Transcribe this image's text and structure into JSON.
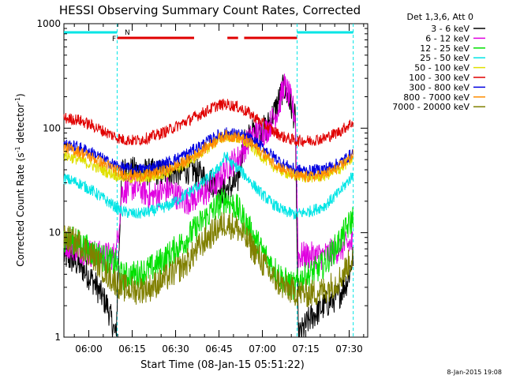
{
  "chart_data": {
    "type": "line",
    "title": "HESSI Observing Summary Count Rates, Corrected",
    "xlabel": "Start Time (08-Jan-15 05:51:22)",
    "ylabel_main": "Corrected Count Rate (s",
    "ylabel_sup1": "-1",
    "ylabel_mid": " detector",
    "ylabel_sup2": "-1",
    "ylabel_end": ")",
    "yscale": "log",
    "ylim": [
      1,
      1000
    ],
    "xlim_minutes": [
      0,
      105
    ],
    "x_ticks": [
      "06:00",
      "06:15",
      "06:30",
      "06:45",
      "07:00",
      "07:15",
      "07:30"
    ],
    "x_tick_minutes": [
      8.6,
      23.6,
      38.6,
      53.6,
      68.6,
      83.6,
      98.6
    ],
    "y_ticks": [
      "1",
      "10",
      "100",
      "1000"
    ],
    "y_tick_values": [
      1,
      10,
      100,
      1000
    ],
    "legend_title": "Det 1,3,6, Att 0",
    "legend_position": "right",
    "footer_date": "8-Jan-2015 19:08",
    "flags": {
      "night_label": "N",
      "flare_label": "F",
      "night_color": "#00e5e5",
      "flare_color": "#e00000",
      "night_intervals_minutes": [
        [
          0,
          18.4
        ],
        [
          80.6,
          100
        ]
      ],
      "flare_intervals_minutes": [
        [
          18.4,
          45
        ],
        [
          56.5,
          60.2
        ],
        [
          62.3,
          80.6
        ]
      ],
      "boundaries_minutes": [
        18.4,
        80.6,
        100
      ]
    },
    "series": [
      {
        "name": "3 - 6 keV",
        "color": "#000000",
        "x": [
          0,
          5,
          10,
          15,
          18,
          20,
          28,
          36,
          44,
          50,
          55,
          60,
          62,
          65,
          70,
          73,
          76,
          78,
          80,
          81,
          85,
          90,
          95,
          98,
          100
        ],
        "y": [
          6,
          5,
          3.5,
          2,
          1,
          40,
          38,
          37,
          40,
          32,
          25,
          30,
          70,
          90,
          100,
          150,
          250,
          180,
          120,
          1,
          1.5,
          2,
          2.5,
          3.5,
          6
        ]
      },
      {
        "name": "6 - 12 keV",
        "color": "#e000e0",
        "x": [
          0,
          5,
          10,
          15,
          18,
          20,
          25,
          30,
          36,
          42,
          48,
          53,
          57,
          60,
          63,
          66,
          70,
          74,
          76,
          78,
          80,
          81,
          85,
          90,
          95,
          100
        ],
        "y": [
          8,
          7,
          6.3,
          6,
          6,
          25,
          28,
          22,
          26,
          20,
          23,
          30,
          45,
          50,
          70,
          90,
          95,
          150,
          260,
          200,
          130,
          6,
          6,
          6,
          7,
          8
        ]
      },
      {
        "name": "12 - 25 keV",
        "color": "#00e000",
        "x": [
          0,
          5,
          10,
          15,
          18,
          20,
          25,
          30,
          36,
          42,
          48,
          53,
          56,
          60,
          64,
          68,
          72,
          76,
          80,
          81,
          85,
          90,
          95,
          100
        ],
        "y": [
          9,
          8,
          6.5,
          5.5,
          5,
          3.8,
          4,
          4.5,
          6,
          8.5,
          13,
          18,
          21,
          17,
          11,
          7,
          4.8,
          3.5,
          3,
          3.5,
          4,
          5,
          8,
          14
        ]
      },
      {
        "name": "25 - 50 keV",
        "color": "#00e5e5",
        "x": [
          0,
          5,
          10,
          15,
          20,
          25,
          30,
          36,
          42,
          48,
          53,
          56,
          58,
          60,
          64,
          68,
          72,
          76,
          80,
          85,
          90,
          95,
          100
        ],
        "y": [
          33,
          30,
          25,
          20,
          16,
          15,
          16,
          18,
          23,
          30,
          40,
          55,
          45,
          42,
          32,
          24,
          19,
          16,
          15,
          16,
          18,
          24,
          36
        ]
      },
      {
        "name": "50 - 100 keV",
        "color": "#e0e000",
        "x": [
          0,
          5,
          10,
          15,
          20,
          25,
          30,
          36,
          42,
          48,
          53,
          56,
          60,
          64,
          68,
          72,
          76,
          80,
          85,
          90,
          95,
          100
        ],
        "y": [
          55,
          50,
          44,
          38,
          34,
          33,
          34,
          38,
          45,
          60,
          75,
          85,
          80,
          70,
          55,
          44,
          38,
          35,
          34,
          35,
          40,
          52
        ]
      },
      {
        "name": "100 - 300 keV",
        "color": "#e00000",
        "x": [
          0,
          5,
          10,
          15,
          20,
          25,
          30,
          36,
          42,
          48,
          53,
          56,
          60,
          64,
          68,
          72,
          76,
          80,
          85,
          90,
          95,
          100
        ],
        "y": [
          125,
          120,
          105,
          90,
          78,
          76,
          82,
          95,
          115,
          140,
          165,
          170,
          160,
          140,
          115,
          95,
          82,
          76,
          76,
          80,
          92,
          115
        ]
      },
      {
        "name": "300 - 800 keV",
        "color": "#0000e0",
        "x": [
          0,
          5,
          10,
          15,
          20,
          25,
          30,
          36,
          42,
          48,
          53,
          56,
          60,
          64,
          68,
          72,
          76,
          80,
          85,
          90,
          95,
          100
        ],
        "y": [
          70,
          66,
          58,
          48,
          42,
          40,
          42,
          47,
          56,
          70,
          85,
          90,
          88,
          80,
          68,
          55,
          45,
          40,
          39,
          41,
          46,
          58
        ]
      },
      {
        "name": "800 - 7000 keV",
        "color": "#ff8c00",
        "x": [
          0,
          5,
          10,
          15,
          20,
          25,
          30,
          36,
          42,
          48,
          53,
          56,
          60,
          64,
          68,
          72,
          76,
          80,
          85,
          90,
          95,
          100
        ],
        "y": [
          65,
          60,
          52,
          44,
          37,
          35,
          36,
          40,
          48,
          62,
          78,
          85,
          82,
          74,
          60,
          48,
          40,
          35,
          34,
          36,
          42,
          55
        ]
      },
      {
        "name": "7000 - 20000 keV",
        "color": "#808000",
        "x": [
          0,
          5,
          10,
          15,
          20,
          25,
          30,
          36,
          42,
          48,
          53,
          56,
          60,
          64,
          68,
          72,
          76,
          80,
          85,
          90,
          95,
          100
        ],
        "y": [
          9,
          8,
          6,
          4,
          3,
          2.8,
          3,
          3.8,
          5,
          8,
          11,
          12.5,
          11,
          8,
          5.5,
          3.8,
          3,
          2.7,
          2.6,
          2.8,
          3.5,
          6
        ]
      }
    ]
  }
}
